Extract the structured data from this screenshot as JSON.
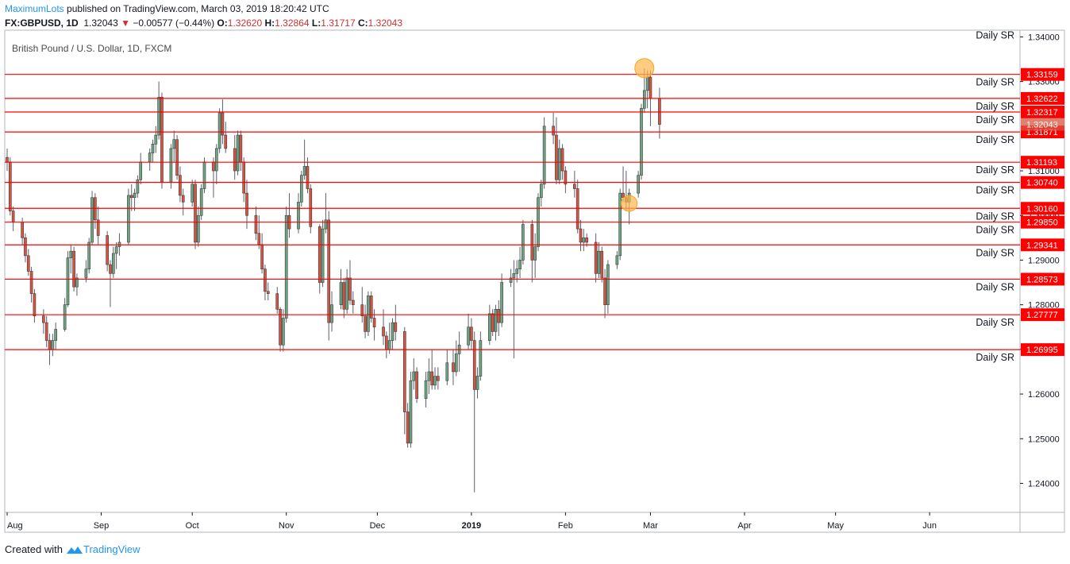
{
  "header": {
    "author": "MaximumLots",
    "published": "published on TradingView.com, March 03, 2019 18:20:42 UTC",
    "symbol": "FX:GBPUSD, 1D",
    "last": "1.32043",
    "change": "−0.00577 (−0.44%)",
    "o_label": "O:",
    "o_value": "1.32620",
    "h_label": "H:",
    "h_value": "1.32864",
    "l_label": "L:",
    "l_value": "1.31717",
    "c_label": "C:",
    "c_value": "1.32043"
  },
  "footer": {
    "created_with": "Created with",
    "brand": "TradingView"
  },
  "colors": {
    "up": "#6ba583",
    "down": "#d75442",
    "sr_line": "#ff0000",
    "marker": "#ffb74d",
    "axis": "#131722"
  },
  "chart_data": {
    "type": "candlestick",
    "title": "British Pound / U.S. Dollar, 1D, FXCM",
    "ylim": [
      1.2335,
      1.3415
    ],
    "y_ticks": [
      "1.24000",
      "1.25000",
      "1.26000",
      "1.27000",
      "1.28000",
      "1.29000",
      "1.30000",
      "1.31000",
      "1.33000",
      "1.34000"
    ],
    "x_ticks": [
      {
        "label": "Aug",
        "date": "2018-08-01"
      },
      {
        "label": "Sep",
        "date": "2018-09-01"
      },
      {
        "label": "Oct",
        "date": "2018-10-01"
      },
      {
        "label": "Nov",
        "date": "2018-11-01"
      },
      {
        "label": "Dec",
        "date": "2018-12-01"
      },
      {
        "label": "2019",
        "date": "2019-01-01"
      },
      {
        "label": "Feb",
        "date": "2019-02-01"
      },
      {
        "label": "Mar",
        "date": "2019-03-01"
      },
      {
        "label": "Apr",
        "date": "2019-04-01"
      },
      {
        "label": "May",
        "date": "2019-05-01"
      },
      {
        "label": "Jun",
        "date": "2019-06-01"
      }
    ],
    "x_range": [
      "2018-08-01",
      "2019-06-30"
    ],
    "sr_levels": [
      {
        "label": "Daily SR",
        "value": 1.33159,
        "tag": "1.33159"
      },
      {
        "label": "Daily SR",
        "value": 1.32622,
        "tag": "1.32622"
      },
      {
        "label": "Daily SR",
        "value": 1.32317,
        "tag": "1.32317"
      },
      {
        "label": "Daily SR",
        "value": 1.31871,
        "tag": "1.31871"
      },
      {
        "label": "Daily SR",
        "value": 1.31193,
        "tag": "1.31193"
      },
      {
        "label": "Daily SR",
        "value": 1.3074,
        "tag": "1.30740"
      },
      {
        "label": "Daily SR",
        "value": 1.3016,
        "tag": "1.30160"
      },
      {
        "label": "Daily SR",
        "value": 1.2985,
        "tag": "1.29850"
      },
      {
        "label": "Daily SR",
        "value": 1.29341,
        "tag": "1.29341"
      },
      {
        "label": "Daily SR",
        "value": 1.28573,
        "tag": "1.28573"
      },
      {
        "label": "Daily SR",
        "value": 1.27777,
        "tag": "1.27777"
      },
      {
        "label": "Daily SR",
        "value": 1.26995,
        "tag": "1.26995"
      }
    ],
    "top_label": {
      "label": "Daily SR",
      "value": 1.3405
    },
    "last_price": {
      "value": 1.32043,
      "tag": "1.32043"
    },
    "markers": [
      {
        "date": "2019-02-27",
        "value": 1.333
      },
      {
        "date": "2019-02-22",
        "value": 1.3027
      }
    ],
    "candles": [
      [
        "2018-08-01",
        1.313,
        1.315,
        1.31,
        1.312
      ],
      [
        "2018-08-02",
        1.312,
        1.313,
        1.3,
        1.301
      ],
      [
        "2018-08-03",
        1.301,
        1.302,
        1.2965,
        1.2985
      ],
      [
        "2018-08-06",
        1.2985,
        1.2995,
        1.2935,
        1.295
      ],
      [
        "2018-08-07",
        1.295,
        1.296,
        1.2895,
        1.291
      ],
      [
        "2018-08-08",
        1.291,
        1.2925,
        1.2865,
        1.2875
      ],
      [
        "2018-08-09",
        1.2875,
        1.2885,
        1.2805,
        1.2825
      ],
      [
        "2018-08-10",
        1.2825,
        1.2835,
        1.276,
        1.2775
      ],
      [
        "2018-08-13",
        1.2775,
        1.279,
        1.2735,
        1.276
      ],
      [
        "2018-08-14",
        1.276,
        1.2775,
        1.2705,
        1.272
      ],
      [
        "2018-08-15",
        1.272,
        1.2735,
        1.2665,
        1.27
      ],
      [
        "2018-08-16",
        1.27,
        1.2735,
        1.2685,
        1.272
      ],
      [
        "2018-08-17",
        1.272,
        1.276,
        1.27,
        1.2745
      ],
      [
        "2018-08-20",
        1.2745,
        1.2815,
        1.274,
        1.28
      ],
      [
        "2018-08-21",
        1.28,
        1.292,
        1.2795,
        1.2905
      ],
      [
        "2018-08-22",
        1.2905,
        1.2935,
        1.287,
        1.292
      ],
      [
        "2018-08-23",
        1.292,
        1.293,
        1.283,
        1.284
      ],
      [
        "2018-08-24",
        1.284,
        1.287,
        1.282,
        1.286
      ],
      [
        "2018-08-27",
        1.286,
        1.29,
        1.285,
        1.288
      ],
      [
        "2018-08-28",
        1.288,
        1.295,
        1.287,
        1.294
      ],
      [
        "2018-08-29",
        1.294,
        1.3055,
        1.2935,
        1.304
      ],
      [
        "2018-08-30",
        1.304,
        1.305,
        1.297,
        1.299
      ],
      [
        "2018-08-31",
        1.299,
        1.302,
        1.2935,
        1.2955
      ],
      [
        "2018-09-03",
        1.2955,
        1.2965,
        1.2875,
        1.289
      ],
      [
        "2018-09-04",
        1.289,
        1.29,
        1.2795,
        1.287
      ],
      [
        "2018-09-05",
        1.287,
        1.293,
        1.286,
        1.2915
      ],
      [
        "2018-09-06",
        1.2915,
        1.294,
        1.288,
        1.293
      ],
      [
        "2018-09-07",
        1.293,
        1.296,
        1.291,
        1.294
      ],
      [
        "2018-09-10",
        1.294,
        1.306,
        1.2935,
        1.3045
      ],
      [
        "2018-09-11",
        1.3045,
        1.307,
        1.301,
        1.304
      ],
      [
        "2018-09-12",
        1.304,
        1.306,
        1.301,
        1.305
      ],
      [
        "2018-09-13",
        1.305,
        1.309,
        1.304,
        1.308
      ],
      [
        "2018-09-14",
        1.308,
        1.314,
        1.307,
        1.312
      ],
      [
        "2018-09-17",
        1.312,
        1.315,
        1.31,
        1.314
      ],
      [
        "2018-09-18",
        1.314,
        1.317,
        1.312,
        1.316
      ],
      [
        "2018-09-19",
        1.316,
        1.32,
        1.314,
        1.318
      ],
      [
        "2018-09-20",
        1.318,
        1.33,
        1.317,
        1.3265
      ],
      [
        "2018-09-21",
        1.3265,
        1.3275,
        1.306,
        1.3075
      ],
      [
        "2018-09-24",
        1.3075,
        1.316,
        1.306,
        1.315
      ],
      [
        "2018-09-25",
        1.315,
        1.319,
        1.312,
        1.317
      ],
      [
        "2018-09-26",
        1.317,
        1.318,
        1.308,
        1.309
      ],
      [
        "2018-09-27",
        1.309,
        1.311,
        1.303,
        1.3045
      ],
      [
        "2018-09-28",
        1.3045,
        1.306,
        1.3,
        1.303
      ],
      [
        "2018-10-01",
        1.303,
        1.308,
        1.302,
        1.307
      ],
      [
        "2018-10-02",
        1.307,
        1.308,
        1.2925,
        1.294
      ],
      [
        "2018-10-03",
        1.294,
        1.302,
        1.293,
        1.3
      ],
      [
        "2018-10-04",
        1.3,
        1.307,
        1.299,
        1.306
      ],
      [
        "2018-10-05",
        1.306,
        1.313,
        1.305,
        1.312
      ],
      [
        "2018-10-08",
        1.312,
        1.313,
        1.304,
        1.31
      ],
      [
        "2018-10-09",
        1.31,
        1.316,
        1.307,
        1.315
      ],
      [
        "2018-10-10",
        1.315,
        1.324,
        1.314,
        1.323
      ],
      [
        "2018-10-11",
        1.323,
        1.326,
        1.316,
        1.318
      ],
      [
        "2018-10-12",
        1.318,
        1.321,
        1.314,
        1.315
      ],
      [
        "2018-10-15",
        1.315,
        1.318,
        1.308,
        1.31
      ],
      [
        "2018-10-16",
        1.31,
        1.319,
        1.309,
        1.318
      ],
      [
        "2018-10-17",
        1.318,
        1.319,
        1.31,
        1.312
      ],
      [
        "2018-10-18",
        1.312,
        1.313,
        1.303,
        1.305
      ],
      [
        "2018-10-19",
        1.305,
        1.308,
        1.297,
        1.3
      ],
      [
        "2018-10-22",
        1.3,
        1.302,
        1.2945,
        1.296
      ],
      [
        "2018-10-23",
        1.296,
        1.3,
        1.2925,
        1.2935
      ],
      [
        "2018-10-24",
        1.2935,
        1.296,
        1.287,
        1.288
      ],
      [
        "2018-10-25",
        1.288,
        1.289,
        1.281,
        1.283
      ],
      [
        "2018-10-26",
        1.283,
        1.285,
        1.281,
        1.2825
      ],
      [
        "2018-10-29",
        1.2825,
        1.284,
        1.278,
        1.279
      ],
      [
        "2018-10-30",
        1.279,
        1.2795,
        1.2695,
        1.271
      ],
      [
        "2018-10-31",
        1.271,
        1.279,
        1.2695,
        1.277
      ],
      [
        "2018-11-01",
        1.277,
        1.302,
        1.276,
        1.3
      ],
      [
        "2018-11-02",
        1.3,
        1.305,
        1.295,
        1.297
      ],
      [
        "2018-11-05",
        1.297,
        1.305,
        1.296,
        1.303
      ],
      [
        "2018-11-06",
        1.303,
        1.31,
        1.302,
        1.309
      ],
      [
        "2018-11-07",
        1.309,
        1.317,
        1.308,
        1.311
      ],
      [
        "2018-11-08",
        1.311,
        1.313,
        1.305,
        1.306
      ],
      [
        "2018-11-09",
        1.306,
        1.307,
        1.296,
        1.2975
      ],
      [
        "2018-11-12",
        1.2975,
        1.298,
        1.2825,
        1.285
      ],
      [
        "2018-11-13",
        1.285,
        1.299,
        1.284,
        1.297
      ],
      [
        "2018-11-14",
        1.297,
        1.305,
        1.296,
        1.299
      ],
      [
        "2018-11-15",
        1.299,
        1.301,
        1.272,
        1.276
      ],
      [
        "2018-11-16",
        1.276,
        1.283,
        1.274,
        1.28
      ],
      [
        "2018-11-19",
        1.28,
        1.288,
        1.279,
        1.285
      ],
      [
        "2018-11-20",
        1.285,
        1.286,
        1.277,
        1.279
      ],
      [
        "2018-11-21",
        1.279,
        1.288,
        1.278,
        1.286
      ],
      [
        "2018-11-22",
        1.286,
        1.29,
        1.28,
        1.281
      ],
      [
        "2018-11-23",
        1.281,
        1.283,
        1.278,
        1.28
      ],
      [
        "2018-11-26",
        1.28,
        1.284,
        1.276,
        1.2775
      ],
      [
        "2018-11-27",
        1.2775,
        1.28,
        1.2725,
        1.274
      ],
      [
        "2018-11-28",
        1.274,
        1.283,
        1.273,
        1.282
      ],
      [
        "2018-11-29",
        1.282,
        1.283,
        1.276,
        1.277
      ],
      [
        "2018-11-30",
        1.277,
        1.279,
        1.272,
        1.275
      ],
      [
        "2018-12-03",
        1.275,
        1.279,
        1.271,
        1.273
      ],
      [
        "2018-12-04",
        1.273,
        1.274,
        1.268,
        1.27
      ],
      [
        "2018-12-05",
        1.27,
        1.276,
        1.269,
        1.272
      ],
      [
        "2018-12-06",
        1.272,
        1.277,
        1.27,
        1.276
      ],
      [
        "2018-12-07",
        1.276,
        1.28,
        1.272,
        1.274
      ],
      [
        "2018-12-10",
        1.274,
        1.275,
        1.251,
        1.256
      ],
      [
        "2018-12-11",
        1.256,
        1.258,
        1.248,
        1.249
      ],
      [
        "2018-12-12",
        1.249,
        1.265,
        1.248,
        1.263
      ],
      [
        "2018-12-13",
        1.263,
        1.268,
        1.261,
        1.265
      ],
      [
        "2018-12-14",
        1.265,
        1.266,
        1.258,
        1.259
      ],
      [
        "2018-12-17",
        1.259,
        1.265,
        1.257,
        1.263
      ],
      [
        "2018-12-18",
        1.263,
        1.268,
        1.26,
        1.265
      ],
      [
        "2018-12-19",
        1.265,
        1.27,
        1.261,
        1.262
      ],
      [
        "2018-12-20",
        1.262,
        1.266,
        1.261,
        1.264
      ],
      [
        "2018-12-21",
        1.264,
        1.266,
        1.261,
        1.263
      ],
      [
        "2018-12-24",
        1.263,
        1.27,
        1.262,
        1.267
      ],
      [
        "2018-12-26",
        1.267,
        1.27,
        1.262,
        1.265
      ],
      [
        "2018-12-27",
        1.265,
        1.272,
        1.264,
        1.269
      ],
      [
        "2018-12-28",
        1.269,
        1.274,
        1.265,
        1.271
      ],
      [
        "2018-12-31",
        1.271,
        1.278,
        1.27,
        1.275
      ],
      [
        "2019-01-01",
        1.275,
        1.277,
        1.27,
        1.272
      ],
      [
        "2019-01-02",
        1.272,
        1.274,
        1.238,
        1.261
      ],
      [
        "2019-01-03",
        1.261,
        1.266,
        1.259,
        1.264
      ],
      [
        "2019-01-04",
        1.264,
        1.274,
        1.263,
        1.272
      ],
      [
        "2019-01-07",
        1.272,
        1.28,
        1.271,
        1.278
      ],
      [
        "2019-01-08",
        1.278,
        1.279,
        1.273,
        1.274
      ],
      [
        "2019-01-09",
        1.274,
        1.28,
        1.272,
        1.279
      ],
      [
        "2019-01-10",
        1.279,
        1.281,
        1.273,
        1.276
      ],
      [
        "2019-01-11",
        1.276,
        1.287,
        1.275,
        1.285
      ],
      [
        "2019-01-14",
        1.285,
        1.288,
        1.284,
        1.286
      ],
      [
        "2019-01-15",
        1.286,
        1.29,
        1.268,
        1.287
      ],
      [
        "2019-01-16",
        1.287,
        1.29,
        1.285,
        1.288
      ],
      [
        "2019-01-17",
        1.288,
        1.293,
        1.286,
        1.29
      ],
      [
        "2019-01-18",
        1.29,
        1.299,
        1.289,
        1.298
      ],
      [
        "2019-01-21",
        1.298,
        1.299,
        1.285,
        1.29
      ],
      [
        "2019-01-22",
        1.29,
        1.296,
        1.286,
        1.293
      ],
      [
        "2019-01-23",
        1.293,
        1.305,
        1.292,
        1.304
      ],
      [
        "2019-01-24",
        1.304,
        1.308,
        1.302,
        1.307
      ],
      [
        "2019-01-25",
        1.307,
        1.322,
        1.306,
        1.32
      ],
      [
        "2019-01-28",
        1.32,
        1.323,
        1.316,
        1.318
      ],
      [
        "2019-01-29",
        1.318,
        1.322,
        1.307,
        1.308
      ],
      [
        "2019-01-30",
        1.308,
        1.317,
        1.307,
        1.315
      ],
      [
        "2019-01-31",
        1.315,
        1.316,
        1.308,
        1.31
      ],
      [
        "2019-02-01",
        1.31,
        1.311,
        1.305,
        1.307
      ],
      [
        "2019-02-04",
        1.307,
        1.31,
        1.304,
        1.306
      ],
      [
        "2019-02-05",
        1.306,
        1.308,
        1.296,
        1.297
      ],
      [
        "2019-02-06",
        1.297,
        1.299,
        1.292,
        1.294
      ],
      [
        "2019-02-07",
        1.294,
        1.297,
        1.292,
        1.295
      ],
      [
        "2019-02-08",
        1.295,
        1.296,
        1.293,
        1.294
      ],
      [
        "2019-02-11",
        1.294,
        1.296,
        1.285,
        1.287
      ],
      [
        "2019-02-12",
        1.287,
        1.294,
        1.286,
        1.292
      ],
      [
        "2019-02-13",
        1.292,
        1.293,
        1.285,
        1.286
      ],
      [
        "2019-02-14",
        1.286,
        1.288,
        1.277,
        1.28
      ],
      [
        "2019-02-15",
        1.28,
        1.29,
        1.278,
        1.289
      ],
      [
        "2019-02-18",
        1.289,
        1.292,
        1.288,
        1.291
      ],
      [
        "2019-02-19",
        1.291,
        1.306,
        1.29,
        1.305
      ],
      [
        "2019-02-20",
        1.305,
        1.311,
        1.303,
        1.304
      ],
      [
        "2019-02-21",
        1.304,
        1.31,
        1.301,
        1.303
      ],
      [
        "2019-02-22",
        1.303,
        1.306,
        1.298,
        1.305
      ],
      [
        "2019-02-25",
        1.305,
        1.31,
        1.304,
        1.309
      ],
      [
        "2019-02-26",
        1.309,
        1.325,
        1.308,
        1.324
      ],
      [
        "2019-02-27",
        1.324,
        1.333,
        1.323,
        1.328
      ],
      [
        "2019-02-28",
        1.328,
        1.3325,
        1.324,
        1.331
      ],
      [
        "2019-03-01",
        1.331,
        1.3325,
        1.32,
        1.3262
      ],
      [
        "2019-03-04",
        1.3262,
        1.3286,
        1.3172,
        1.3204
      ]
    ]
  }
}
